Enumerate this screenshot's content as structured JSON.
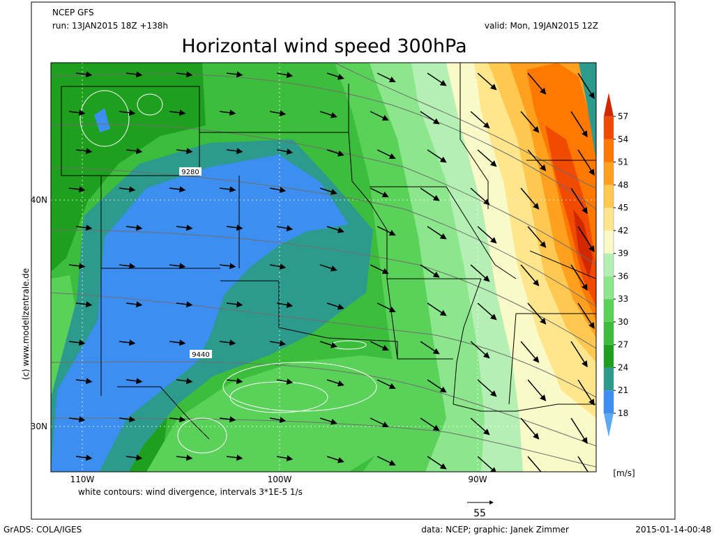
{
  "header": {
    "model": "NCEP GFS",
    "run": "run: 13JAN2015 18Z +138h",
    "valid": "valid: Mon, 19JAN2015 12Z",
    "title": "Horizontal wind speed 300hPa"
  },
  "map": {
    "lat_labels": [
      "40N",
      "30N"
    ],
    "lon_labels": [
      "110W",
      "100W",
      "90W"
    ],
    "contour_labels": [
      "9280",
      "9440"
    ],
    "note": "white contours: wind divergence, intervals 3*1E-5 1/s",
    "reference_vector": 55,
    "copyright": "(c) www.modellzentrale.de"
  },
  "colorbar": {
    "ticks": [
      18,
      21,
      24,
      27,
      30,
      33,
      36,
      39,
      42,
      45,
      48,
      51,
      54,
      57
    ],
    "colors": [
      "#5aaaf5",
      "#3c8ff0",
      "#2c9a8c",
      "#1ea01e",
      "#3cbe3c",
      "#5ad25a",
      "#8ce68c",
      "#b4f0b4",
      "#fafac8",
      "#ffe68c",
      "#ffc850",
      "#ffa01e",
      "#ff7800",
      "#f04b00",
      "#d22800"
    ],
    "unit": "[m/s]"
  },
  "footer": {
    "software": "GrADS: COLA/IGES",
    "credits": "data: NCEP; graphic: Janek Zimmer",
    "timestamp": "2015-01-14-00:48"
  }
}
